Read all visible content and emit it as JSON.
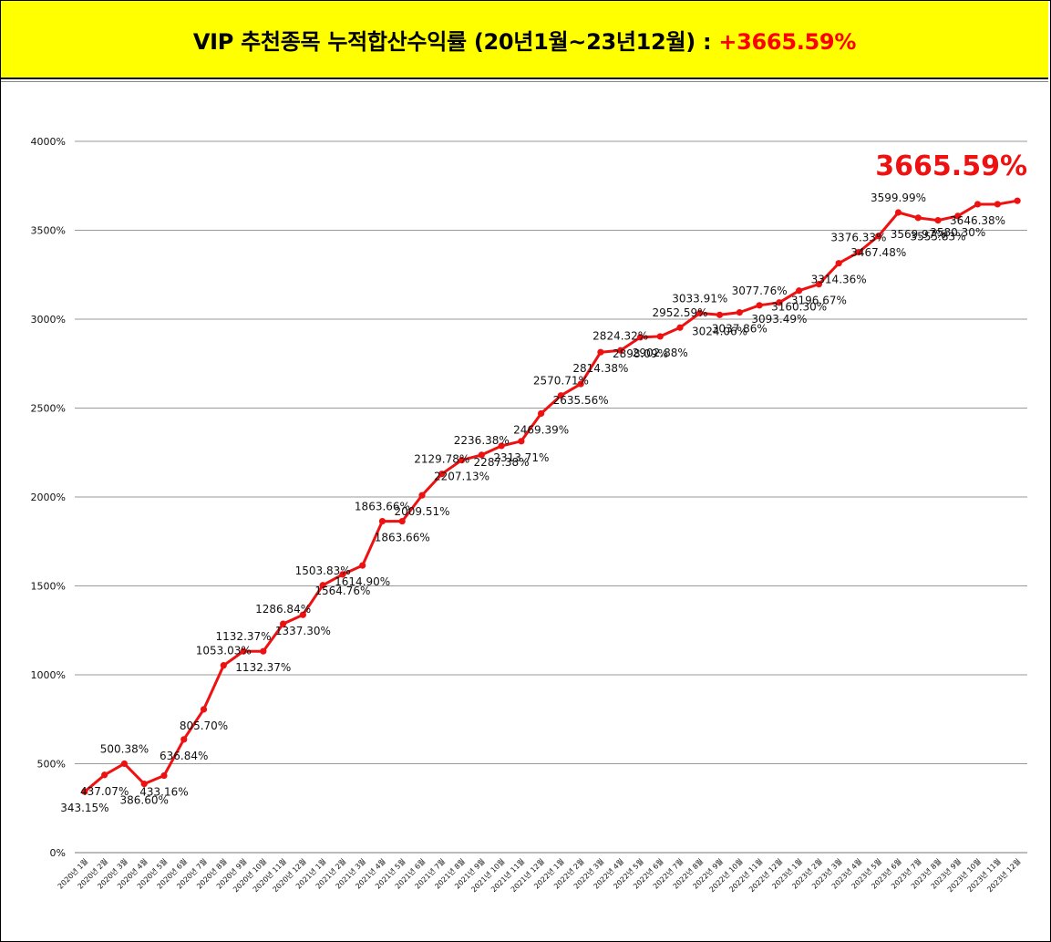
{
  "header": {
    "title": "VIP 추천종목 누적합산수익률 (20년1월~23년12월) : ",
    "highlight": "+3665.59%",
    "highlight_color": "#ff0000",
    "background": "#ffff00"
  },
  "chart_data": {
    "type": "line",
    "title": "",
    "xlabel": "",
    "ylabel": "",
    "ylim": [
      0,
      4000
    ],
    "yticks": [
      "0%",
      "500%",
      "1000%",
      "1500%",
      "2000%",
      "2500%",
      "3000%",
      "3500%",
      "4000%"
    ],
    "grid": true,
    "line_color": "#ee1111",
    "categories": [
      "2020년 1월",
      "2020년 2월",
      "2020년 3월",
      "2020년 4월",
      "2020년 5월",
      "2020년 6월",
      "2020년 7월",
      "2020년 8월",
      "2020년 9월",
      "2020년 10월",
      "2020년 11월",
      "2020년 12월",
      "2021년 1월",
      "2021년 2월",
      "2021년 3월",
      "2021년 4월",
      "2021년 5월",
      "2021년 6월",
      "2021년 7월",
      "2021년 8월",
      "2021년 9월",
      "2021년 10월",
      "2021년 11월",
      "2021년 12월",
      "2022년 1월",
      "2022년 2월",
      "2022년 3월",
      "2022년 4월",
      "2022년 5월",
      "2022년 6월",
      "2022년 7월",
      "2022년 8월",
      "2022년 9월",
      "2022년 10월",
      "2022년 11월",
      "2022년 12월",
      "2023년 1월",
      "2023년 2월",
      "2023년 3월",
      "2023년 4월",
      "2023년 5월",
      "2023년 6월",
      "2023년 7월",
      "2023년 8월",
      "2023년 9월",
      "2023년 10월",
      "2023년 11월",
      "2023년 12월"
    ],
    "series": [
      {
        "values": [
          343.15,
          437.07,
          500.38,
          386.6,
          433.16,
          636.84,
          805.7,
          1053.03,
          1132.37,
          1132.37,
          1286.84,
          1337.3,
          1503.83,
          1564.76,
          1614.9,
          1863.66,
          1863.66,
          2009.51,
          2129.78,
          2207.13,
          2236.38,
          2287.38,
          2313.71,
          2469.39,
          2570.71,
          2635.56,
          2814.38,
          2824.32,
          2898.09,
          2902.88,
          2952.59,
          3033.91,
          3024.06,
          3037.86,
          3077.76,
          3093.49,
          3160.3,
          3196.67,
          3314.36,
          3376.33,
          3467.48,
          3599.99,
          3569.97,
          3555.83,
          3580.3,
          3646.38,
          3646.38,
          3665.59
        ],
        "labels": [
          "343.15%",
          "437.07%",
          "500.38%",
          "386.60%",
          "433.16%",
          "636.84%",
          "805.70%",
          "1053.03%",
          "1132.37%",
          "1132.37%",
          "1286.84%",
          "1337.30%",
          "1503.83%",
          "1564.76%",
          "1614.90%",
          "1863.66%",
          "1863.66%",
          "2009.51%",
          "2129.78%",
          "2207.13%",
          "2236.38%",
          "2287.38%",
          "2313.71%",
          "2469.39%",
          "2570.71%",
          "2635.56%",
          "2814.38%",
          "2824.32%",
          "2898.09%",
          "2902.88%",
          "2952.59%",
          "3033.91%",
          "3024.06%",
          "3037.86%",
          "3077.76%",
          "3093.49%",
          "3160.30%",
          "3196.67%",
          "3314.36%",
          "3376.33%",
          "3467.48%",
          "3599.99%",
          "3569.97%",
          "3555.83%",
          "3580.30%",
          "3646.38%",
          "",
          ""
        ]
      }
    ],
    "final_annotation": "3665.59%"
  }
}
